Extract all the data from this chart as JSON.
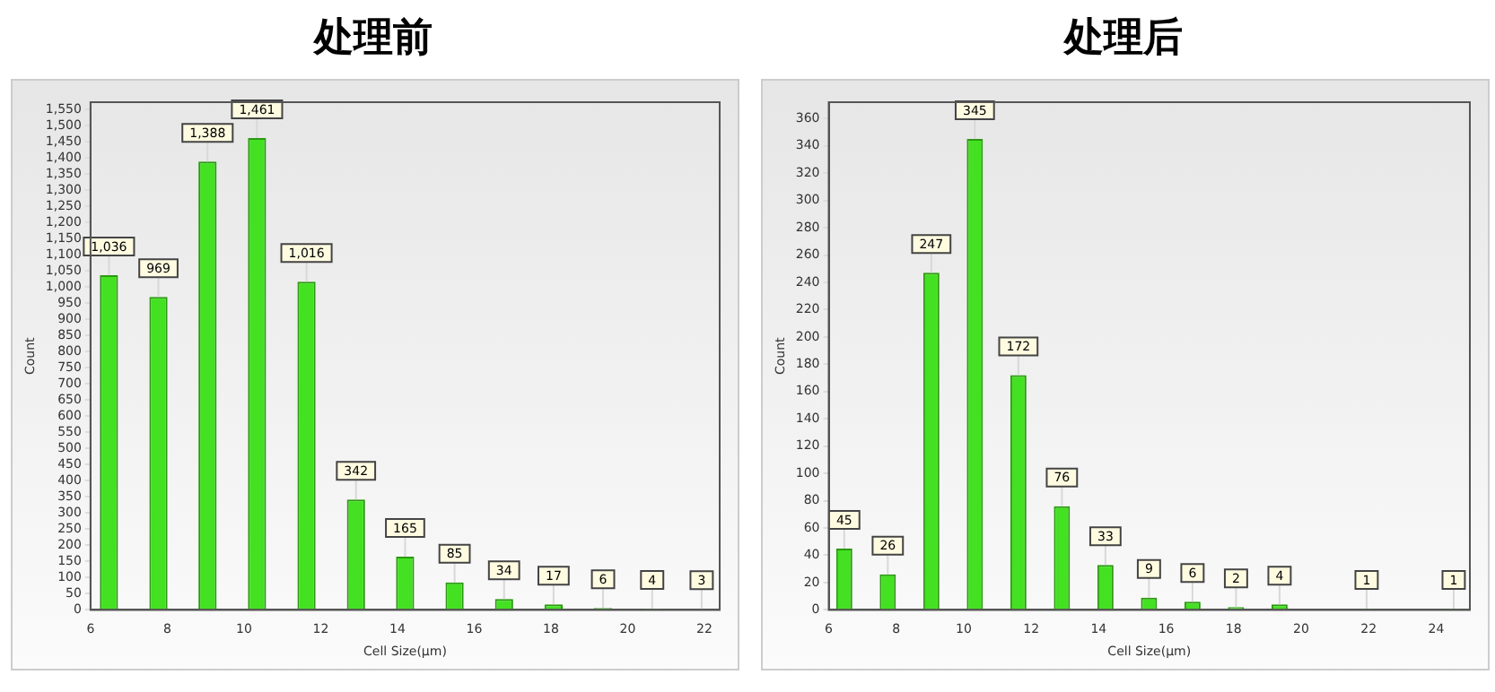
{
  "chart_data": [
    {
      "type": "bar",
      "title": "处理前",
      "xlabel": "Cell Size(μm)",
      "ylabel": "Count",
      "color": "#44e022",
      "x": [
        6.48,
        7.77,
        9.05,
        10.34,
        11.63,
        12.92,
        14.2,
        15.49,
        16.78,
        18.07,
        19.36,
        20.64,
        21.93
      ],
      "values": [
        1036,
        969,
        1388,
        1461,
        1016,
        342,
        165,
        85,
        34,
        17,
        6,
        4,
        3
      ],
      "value_labels": [
        "1,036",
        "969",
        "1,388",
        "1,461",
        "1,016",
        "342",
        "165",
        "85",
        "34",
        "17",
        "6",
        "4",
        "3"
      ],
      "xlim": [
        6,
        22.4
      ],
      "xticks": [
        6,
        8,
        10,
        12,
        14,
        16,
        18,
        20,
        22
      ],
      "ylim": [
        0,
        1572
      ],
      "yticks": [
        0,
        50,
        100,
        150,
        200,
        250,
        300,
        350,
        400,
        450,
        500,
        550,
        600,
        650,
        700,
        750,
        800,
        850,
        900,
        950,
        {
          "value": 1000,
          "label": "1,000"
        },
        {
          "value": 1050,
          "label": "1,050"
        },
        {
          "value": 1100,
          "label": "1,100"
        },
        {
          "value": 1150,
          "label": "1,150"
        },
        {
          "value": 1200,
          "label": "1,200"
        },
        {
          "value": 1250,
          "label": "1,250"
        },
        {
          "value": 1300,
          "label": "1,300"
        },
        {
          "value": 1350,
          "label": "1,350"
        },
        {
          "value": 1400,
          "label": "1,400"
        },
        {
          "value": 1450,
          "label": "1,450"
        },
        {
          "value": 1500,
          "label": "1,500"
        },
        {
          "value": 1550,
          "label": "1,550"
        }
      ]
    },
    {
      "type": "bar",
      "title": "处理后",
      "xlabel": "Cell Size(μm)",
      "ylabel": "Count",
      "color": "#44e022",
      "x": [
        6.46,
        7.75,
        9.04,
        10.33,
        11.62,
        12.91,
        14.2,
        15.49,
        16.78,
        18.07,
        19.36,
        21.94,
        24.52
      ],
      "values": [
        45,
        26,
        247,
        345,
        172,
        76,
        33,
        9,
        6,
        2,
        4,
        1,
        1
      ],
      "value_labels": [
        "45",
        "26",
        "247",
        "345",
        "172",
        "76",
        "33",
        "9",
        "6",
        "2",
        "4",
        "1",
        "1"
      ],
      "xlim": [
        6,
        25
      ],
      "xticks": [
        6,
        8,
        10,
        12,
        14,
        16,
        18,
        20,
        22,
        24
      ],
      "ylim": [
        0,
        372
      ],
      "yticks": [
        0,
        20,
        40,
        60,
        80,
        100,
        120,
        140,
        160,
        180,
        200,
        220,
        240,
        260,
        280,
        300,
        320,
        340,
        360
      ]
    }
  ]
}
